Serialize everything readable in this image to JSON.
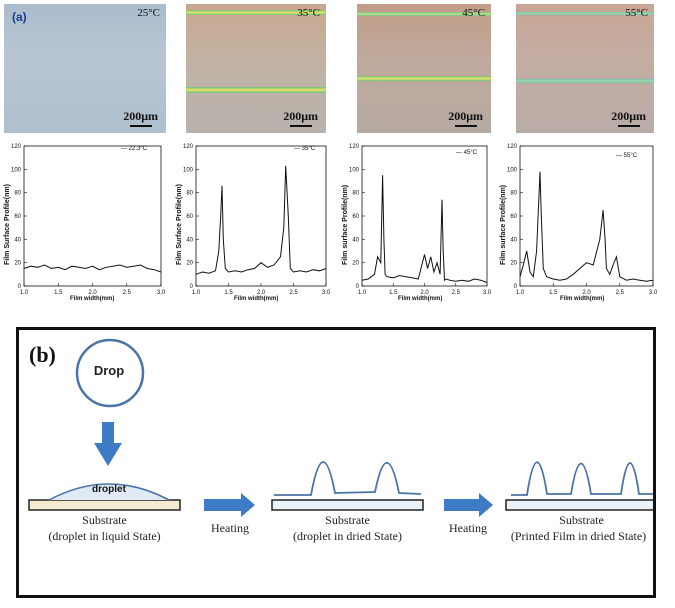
{
  "panel_a": {
    "label": "(a)",
    "scale_bar": "200μm",
    "micrographs": [
      {
        "temp": "25°C"
      },
      {
        "temp": "35°C"
      },
      {
        "temp": "45°C"
      },
      {
        "temp": "55°C"
      }
    ]
  },
  "chart_data": [
    {
      "type": "line",
      "legend": "22.3°C",
      "xlabel": "Film width(mm)",
      "ylabel": "Film Surface Profile(nm)",
      "xlim": [
        1.0,
        3.0
      ],
      "ylim": [
        0,
        120
      ],
      "x": [
        1.0,
        1.1,
        1.2,
        1.3,
        1.4,
        1.5,
        1.6,
        1.7,
        1.8,
        1.9,
        2.0,
        2.1,
        2.2,
        2.3,
        2.4,
        2.5,
        2.6,
        2.7,
        2.8,
        2.9,
        3.0
      ],
      "values": [
        15,
        17,
        16,
        18,
        15,
        16,
        14,
        17,
        16,
        15,
        17,
        14,
        16,
        17,
        18,
        16,
        17,
        18,
        15,
        14,
        12
      ]
    },
    {
      "type": "line",
      "legend": "35°C",
      "xlabel": "Film width(mm)",
      "ylabel": "Film Surface Profile(nm)",
      "xlim": [
        1.0,
        3.0
      ],
      "ylim": [
        0,
        120
      ],
      "x": [
        1.0,
        1.1,
        1.2,
        1.3,
        1.35,
        1.38,
        1.4,
        1.42,
        1.45,
        1.5,
        1.6,
        1.7,
        1.8,
        1.9,
        2.0,
        2.1,
        2.2,
        2.3,
        2.35,
        2.38,
        2.42,
        2.45,
        2.5,
        2.6,
        2.7,
        2.8,
        2.9,
        3.0
      ],
      "values": [
        10,
        12,
        11,
        13,
        30,
        60,
        86,
        40,
        15,
        12,
        13,
        12,
        14,
        15,
        20,
        16,
        18,
        25,
        50,
        103,
        60,
        15,
        12,
        13,
        12,
        14,
        13,
        15
      ]
    },
    {
      "type": "line",
      "legend": "45°C",
      "xlabel": "Film width(mm)",
      "ylabel": "Film surface Profile(nm)",
      "xlim": [
        1.0,
        3.0
      ],
      "ylim": [
        0,
        120
      ],
      "x": [
        1.0,
        1.1,
        1.2,
        1.25,
        1.3,
        1.33,
        1.35,
        1.37,
        1.4,
        1.5,
        1.6,
        1.7,
        1.8,
        1.9,
        2.0,
        2.05,
        2.1,
        2.15,
        2.2,
        2.25,
        2.28,
        2.3,
        2.32,
        2.35,
        2.4,
        2.5,
        2.6,
        2.7,
        2.8,
        2.9,
        3.0
      ],
      "values": [
        5,
        6,
        10,
        25,
        20,
        95,
        40,
        10,
        8,
        7,
        9,
        8,
        7,
        6,
        27,
        15,
        25,
        12,
        20,
        10,
        74,
        30,
        5,
        6,
        5,
        4,
        5,
        4,
        6,
        5,
        3
      ]
    },
    {
      "type": "line",
      "legend": "55°C",
      "xlabel": "Film width(mm)",
      "ylabel": "Film surface Profile(nm)",
      "xlim": [
        1.0,
        3.0
      ],
      "ylim": [
        0,
        120
      ],
      "x": [
        1.0,
        1.05,
        1.1,
        1.15,
        1.2,
        1.25,
        1.3,
        1.32,
        1.35,
        1.4,
        1.5,
        1.6,
        1.7,
        1.8,
        1.9,
        2.0,
        2.1,
        2.2,
        2.25,
        2.28,
        2.3,
        2.35,
        2.4,
        2.45,
        2.5,
        2.6,
        2.7,
        2.8,
        2.9,
        3.0
      ],
      "values": [
        8,
        18,
        30,
        12,
        8,
        30,
        98,
        60,
        15,
        8,
        6,
        5,
        6,
        10,
        15,
        20,
        18,
        40,
        65,
        40,
        15,
        10,
        18,
        25,
        8,
        5,
        6,
        5,
        4,
        5
      ]
    }
  ],
  "panel_b": {
    "label": "(b)",
    "drop": "Drop",
    "droplet": "droplet",
    "substrate": "Substrate",
    "heating_1": "Heating",
    "heating_2": "Heating",
    "caption_1": "(droplet in liquid State)",
    "caption_2": "(droplet in dried State)",
    "caption_3": "(Printed Film in dried State)"
  }
}
